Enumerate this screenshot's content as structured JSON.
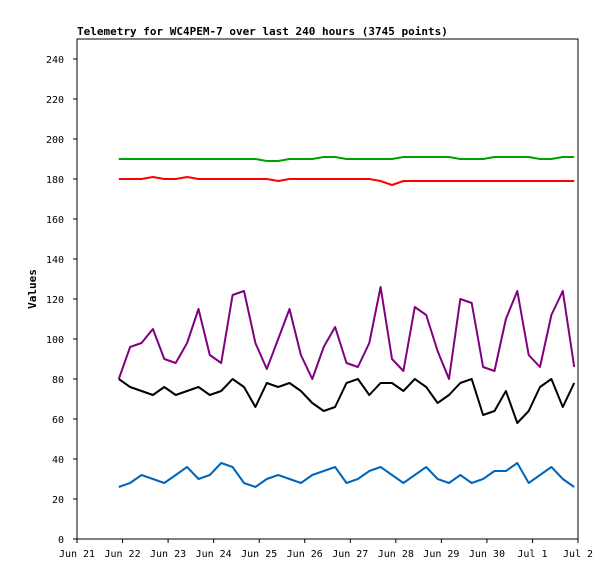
{
  "chart_data": {
    "type": "line",
    "title": "Telemetry for WC4PEM-7 over last 240 hours (3745 points)",
    "xlabel": "",
    "ylabel": "Values",
    "ylim": [
      0,
      250
    ],
    "yticks": [
      0,
      20,
      40,
      60,
      80,
      100,
      120,
      140,
      160,
      180,
      200,
      220,
      240
    ],
    "xlim": [
      "2024-06-21",
      "2024-07-02"
    ],
    "xticks": [
      {
        "date": "2024-06-21",
        "label": "Jun 21"
      },
      {
        "date": "2024-06-22",
        "label": "Jun 22"
      },
      {
        "date": "2024-06-23",
        "label": "Jun 23"
      },
      {
        "date": "2024-06-24",
        "label": "Jun 24"
      },
      {
        "date": "2024-06-25",
        "label": "Jun 25"
      },
      {
        "date": "2024-06-26",
        "label": "Jun 26"
      },
      {
        "date": "2024-06-27",
        "label": "Jun 27"
      },
      {
        "date": "2024-06-28",
        "label": "Jun 28"
      },
      {
        "date": "2024-06-29",
        "label": "Jun 29"
      },
      {
        "date": "2024-06-30",
        "label": "Jun 30"
      },
      {
        "date": "2024-07-01",
        "label": "Jul 1"
      },
      {
        "date": "2024-07-02",
        "label": "Jul 2"
      }
    ],
    "grid": false,
    "legend": "none",
    "x": [
      "2024-06-21T22:00",
      "2024-06-22T04:00",
      "2024-06-22T10:00",
      "2024-06-22T16:00",
      "2024-06-22T22:00",
      "2024-06-23T04:00",
      "2024-06-23T10:00",
      "2024-06-23T16:00",
      "2024-06-23T22:00",
      "2024-06-24T04:00",
      "2024-06-24T10:00",
      "2024-06-24T16:00",
      "2024-06-24T22:00",
      "2024-06-25T04:00",
      "2024-06-25T10:00",
      "2024-06-25T16:00",
      "2024-06-25T22:00",
      "2024-06-26T04:00",
      "2024-06-26T10:00",
      "2024-06-26T16:00",
      "2024-06-26T22:00",
      "2024-06-27T04:00",
      "2024-06-27T10:00",
      "2024-06-27T16:00",
      "2024-06-27T22:00",
      "2024-06-28T04:00",
      "2024-06-28T10:00",
      "2024-06-28T16:00",
      "2024-06-28T22:00",
      "2024-06-29T04:00",
      "2024-06-29T10:00",
      "2024-06-29T16:00",
      "2024-06-29T22:00",
      "2024-06-30T04:00",
      "2024-06-30T10:00",
      "2024-06-30T16:00",
      "2024-06-30T22:00",
      "2024-07-01T04:00",
      "2024-07-01T10:00",
      "2024-07-01T16:00",
      "2024-07-01T22:00"
    ],
    "series": [
      {
        "color": "#00a000",
        "values": [
          190,
          190,
          190,
          190,
          190,
          190,
          190,
          190,
          190,
          190,
          190,
          190,
          190,
          189,
          189,
          190,
          190,
          190,
          191,
          191,
          190,
          190,
          190,
          190,
          190,
          191,
          191,
          191,
          191,
          191,
          190,
          190,
          190,
          191,
          191,
          191,
          191,
          190,
          190,
          191,
          191
        ]
      },
      {
        "color": "#ff0000",
        "values": [
          180,
          180,
          180,
          181,
          180,
          180,
          181,
          180,
          180,
          180,
          180,
          180,
          180,
          180,
          179,
          180,
          180,
          180,
          180,
          180,
          180,
          180,
          180,
          179,
          177,
          179,
          179,
          179,
          179,
          179,
          179,
          179,
          179,
          179,
          179,
          179,
          179,
          179,
          179,
          179,
          179
        ]
      },
      {
        "color": "#800080",
        "values": [
          80,
          96,
          98,
          105,
          90,
          88,
          98,
          115,
          92,
          88,
          122,
          124,
          98,
          85,
          100,
          115,
          92,
          80,
          96,
          106,
          88,
          86,
          98,
          126,
          90,
          84,
          116,
          112,
          94,
          80,
          120,
          118,
          86,
          84,
          110,
          124,
          92,
          86,
          112,
          124,
          86
        ]
      },
      {
        "color": "#000000",
        "values": [
          80,
          76,
          74,
          72,
          76,
          72,
          74,
          76,
          72,
          74,
          80,
          76,
          66,
          78,
          76,
          78,
          74,
          68,
          64,
          66,
          78,
          80,
          72,
          78,
          78,
          74,
          80,
          76,
          68,
          72,
          78,
          80,
          62,
          64,
          74,
          58,
          64,
          76,
          80,
          66,
          78
        ]
      },
      {
        "color": "#0066bb",
        "values": [
          26,
          28,
          32,
          30,
          28,
          32,
          36,
          30,
          32,
          38,
          36,
          28,
          26,
          30,
          32,
          30,
          28,
          32,
          34,
          36,
          28,
          30,
          34,
          36,
          32,
          28,
          32,
          36,
          30,
          28,
          32,
          28,
          30,
          34,
          34,
          38,
          28,
          32,
          36,
          30,
          26
        ]
      }
    ]
  }
}
